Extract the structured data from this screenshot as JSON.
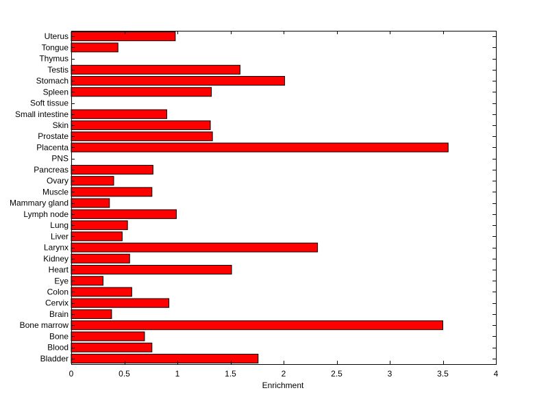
{
  "chart_data": {
    "type": "bar",
    "orientation": "horizontal",
    "title": "",
    "xlabel": "Enrichment",
    "ylabel": "",
    "xlim": [
      0,
      4
    ],
    "xticks": [
      0,
      0.5,
      1,
      1.5,
      2,
      2.5,
      3,
      3.5,
      4
    ],
    "xtick_labels": [
      "0",
      "0.5",
      "1",
      "1.5",
      "2",
      "2.5",
      "3",
      "3.5",
      "4"
    ],
    "grid": false,
    "bar_color": "#ff0000",
    "categories": [
      "Bladder",
      "Blood",
      "Bone",
      "Bone marrow",
      "Brain",
      "Cervix",
      "Colon",
      "Eye",
      "Heart",
      "Kidney",
      "Larynx",
      "Liver",
      "Lung",
      "Lymph node",
      "Mammary gland",
      "Muscle",
      "Ovary",
      "Pancreas",
      "PNS",
      "Placenta",
      "Prostate",
      "Skin",
      "Small intestine",
      "Soft tissue",
      "Spleen",
      "Stomach",
      "Testis",
      "Thymus",
      "Tongue",
      "Uterus"
    ],
    "values": [
      1.76,
      0.76,
      0.69,
      3.5,
      0.38,
      0.92,
      0.57,
      0.3,
      1.51,
      0.55,
      2.32,
      0.48,
      0.53,
      0.99,
      0.36,
      0.76,
      0.4,
      0.77,
      0,
      3.55,
      1.33,
      1.31,
      0.9,
      0,
      1.32,
      2.01,
      1.59,
      0,
      0.44,
      0.98
    ]
  }
}
